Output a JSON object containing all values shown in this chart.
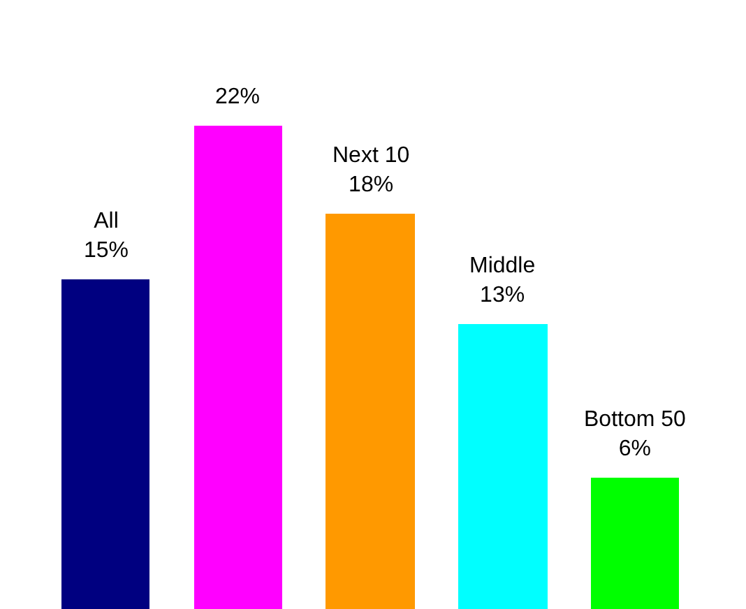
{
  "chart_data": {
    "type": "bar",
    "categories": [
      "All",
      null,
      "Next 10",
      "Middle",
      "Bottom 50"
    ],
    "values": [
      15,
      22,
      18,
      13,
      6
    ],
    "value_labels": [
      "15%",
      "22%",
      "18%",
      "13%",
      "6%"
    ],
    "colors": [
      "#000080",
      "#ff00ff",
      "#ff9900",
      "#00ffff",
      "#00ff00"
    ]
  }
}
